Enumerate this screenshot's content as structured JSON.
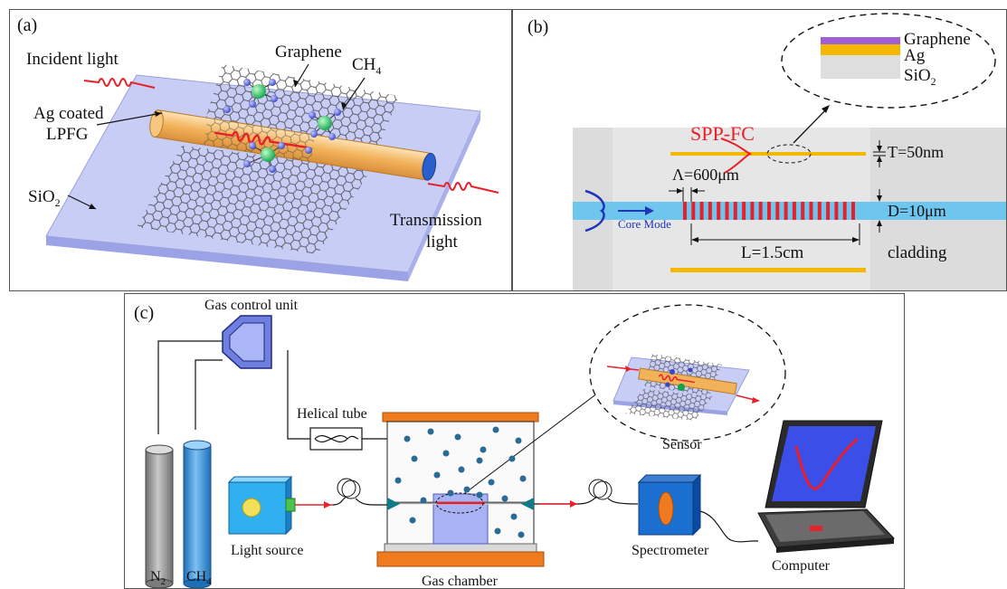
{
  "panel_a": {
    "tag": "(a)",
    "incident_light": "Incident light",
    "graphene": "Graphene",
    "ch4": "CH",
    "ch4_sub": "4",
    "ag_coated_1": "Ag coated",
    "ag_coated_2": "LPFG",
    "sio2": "SiO",
    "sio2_sub": "2",
    "transmission_1": "Transmission",
    "transmission_2": "light"
  },
  "panel_b": {
    "tag": "(b)",
    "inset_graphene": "Graphene",
    "inset_ag": "Ag",
    "inset_sio2": "SiO",
    "inset_sio2_sub": "2",
    "spp_fc": "SPP-FC",
    "thickness": "T=50nm",
    "period": "Λ=600μm",
    "diameter": "D=10μm",
    "core_mode": "Core Mode",
    "length": "L=1.5cm",
    "cladding": "cladding"
  },
  "panel_c": {
    "tag": "(c)",
    "gas_control": "Gas control unit",
    "helical_tube": "Helical tube",
    "sensor": "Sensor",
    "light_source": "Light source",
    "spectrometer": "Spectrometer",
    "computer": "Computer",
    "n2": "N",
    "n2_sub": "2",
    "ch4": "CH",
    "ch4_sub": "4",
    "gas_chamber": "Gas chamber"
  },
  "colors": {
    "fiber": "#f2b25a",
    "substrate": "#b9bff0",
    "laser": "#e8202a",
    "core": "#6ec6ee",
    "ag_layer": "#f5b800",
    "graphene_layer": "#a15fd6",
    "cladding": "#dcdcdc",
    "cylinder_grey": "#8e8e8e",
    "cylinder_blue": "#3e95dd",
    "chamber_plate": "#f07a1e",
    "box_blue": "#1f88d8",
    "dot": "#2a6a96"
  }
}
